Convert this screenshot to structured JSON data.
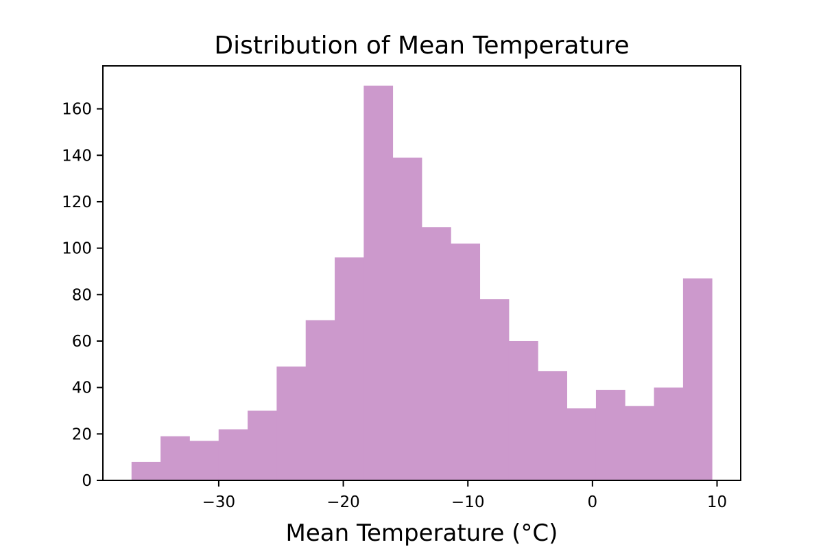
{
  "chart_data": {
    "type": "bar",
    "title": "Distribution of Mean Temperature",
    "xlabel": "Mean Temperature (°C)",
    "ylabel": "",
    "bin_edges": [
      -37.0,
      -34.67,
      -32.34,
      -30.01,
      -27.68,
      -25.35,
      -23.02,
      -20.69,
      -18.36,
      -16.03,
      -13.7,
      -11.37,
      -9.04,
      -6.71,
      -4.38,
      -2.05,
      0.28,
      2.61,
      4.94,
      7.27,
      9.6
    ],
    "values": [
      8,
      19,
      17,
      22,
      30,
      49,
      69,
      96,
      170,
      139,
      109,
      102,
      78,
      60,
      47,
      31,
      39,
      32,
      40,
      87
    ],
    "xlim": [
      -39.3,
      11.9
    ],
    "ylim": [
      0,
      178.5
    ],
    "xticks": [
      -30,
      -20,
      -10,
      0,
      10
    ],
    "xtick_labels": [
      "−30",
      "−20",
      "−10",
      "0",
      "10"
    ],
    "yticks": [
      0,
      20,
      40,
      60,
      80,
      100,
      120,
      140,
      160
    ],
    "ytick_labels": [
      "0",
      "20",
      "40",
      "60",
      "80",
      "100",
      "120",
      "140",
      "160"
    ],
    "bar_color": "#cc99cc",
    "grid": false,
    "legend": "none"
  }
}
